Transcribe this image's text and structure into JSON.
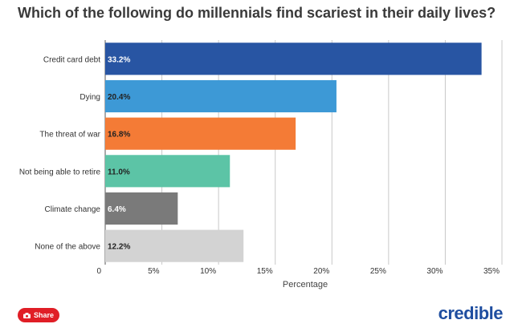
{
  "title": "Which of the following do millennials find scariest in their daily lives?",
  "share_label": "Share",
  "brand": "credible",
  "chart_data": {
    "type": "bar",
    "orientation": "horizontal",
    "categories": [
      "Credit card debt",
      "Dying",
      "The threat of war",
      "Not being able to retire",
      "Climate change",
      "None of the above"
    ],
    "values": [
      33.2,
      20.4,
      16.8,
      11.0,
      6.4,
      12.2
    ],
    "value_labels": [
      "33.2%",
      "20.4%",
      "16.8%",
      "11.0%",
      "6.4%",
      "12.2%"
    ],
    "colors": [
      "#2855a3",
      "#3d99d6",
      "#f47b36",
      "#5cc4a6",
      "#7a7a7a",
      "#d3d3d3"
    ],
    "label_colors": [
      "#ffffff",
      "#222222",
      "#222222",
      "#222222",
      "#ffffff",
      "#222222"
    ],
    "xlabel": "Percentage",
    "xlim": [
      0,
      35
    ],
    "xticks": [
      0,
      5,
      10,
      15,
      20,
      25,
      30,
      35
    ],
    "xtick_labels": [
      "0",
      "5%",
      "10%",
      "15%",
      "20%",
      "25%",
      "30%",
      "35%"
    ],
    "grid": true
  }
}
